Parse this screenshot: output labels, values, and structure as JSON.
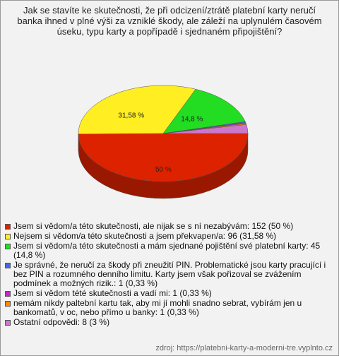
{
  "chart_data": {
    "type": "pie",
    "title": "Jak se stavíte ke skutečnosti, že při odcizení/ztrátě platební karty neručí banka ihned v plné výši za vzniklé škody, ale záleží na uplynulém časovém úseku, typu karty a popřípadě i sjednaném připojištění?",
    "categories": [
      "Jsem si vědom/a této skutečnosti, ale nijak se s ní nezabývám: 152 (50 %)",
      "Nejsem si vědom/a této skutečnosti a jsem překvapen/a: 96 (31,58 %)",
      "Jsem si vědom/a této skutečnosti a mám sjednané pojištění své platební karty: 45 (14,8 %)",
      "Je správné, že neručí za škody při zneužití PIN. Problematické jsou karty pracující i bez PIN a rozumného denního limitu. Karty jsem však pořizoval se zvážením podmínek  a možných rizik.: 1 (0,33 %)",
      "Jsem si vědom tété skutečnosti a vadí mi: 1 (0,33 %)",
      "nemám nikdy paltební kartu tak, aby mi jí mohli snadno sebrat, vybírám jen u bankomatů, v oc, nebo přímo u banky: 1 (0,33 %)",
      "Ostatní odpovědi: 8 (3 %)"
    ],
    "values": [
      50,
      31.58,
      14.8,
      0.33,
      0.33,
      0.33,
      3
    ],
    "value_labels": [
      "50 %",
      "31,58 %",
      "14,8 %",
      null,
      null,
      null,
      null
    ],
    "colors": [
      "#dd2200",
      "#ffee22",
      "#22dd22",
      "#4466ee",
      "#cc22cc",
      "#ff8800",
      "#cc77cc"
    ],
    "source": "zdroj: https://platebni-karty-a-moderni-tre.vyplnto.cz"
  }
}
